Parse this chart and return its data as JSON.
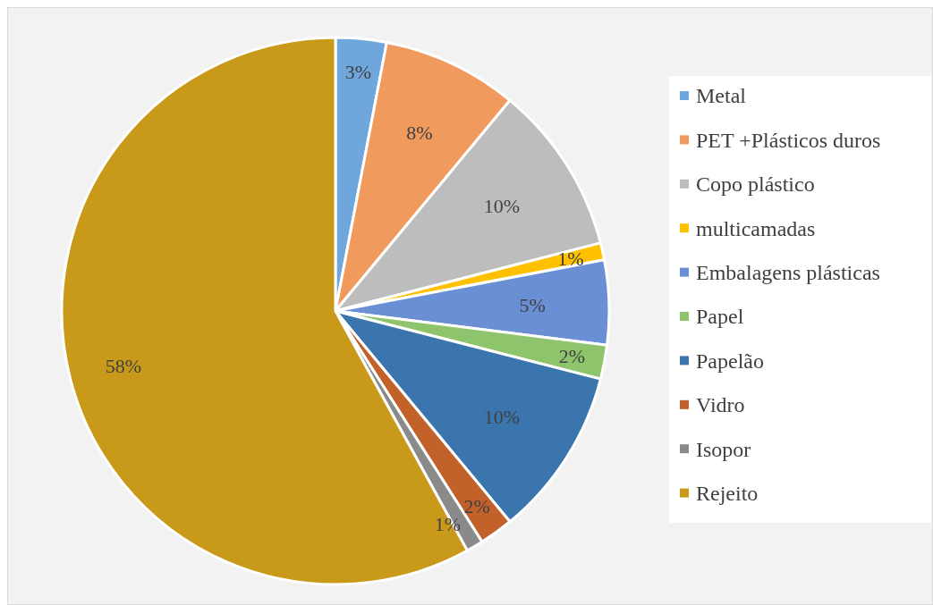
{
  "chart_data": {
    "type": "pie",
    "categories": [
      "Metal",
      "PET +Plásticos duros",
      "Copo plástico",
      "multicamadas",
      "Embalagens plásticas",
      "Papel",
      "Papelão",
      "Vidro",
      "Isopor",
      "Rejeito"
    ],
    "values": [
      3,
      8,
      10,
      1,
      5,
      2,
      10,
      2,
      1,
      58
    ],
    "colors": [
      "#6fa6dc",
      "#f09a5e",
      "#bdbdbd",
      "#ffc000",
      "#6a8fd5",
      "#8ec46b",
      "#3a75ad",
      "#c2622a",
      "#8a8a8a",
      "#c99a1a"
    ],
    "value_labels": [
      "3%",
      "8%",
      "10%",
      "1%",
      "5%",
      "2%",
      "10%",
      "2%",
      "1%",
      "58%"
    ],
    "legend": "right"
  }
}
